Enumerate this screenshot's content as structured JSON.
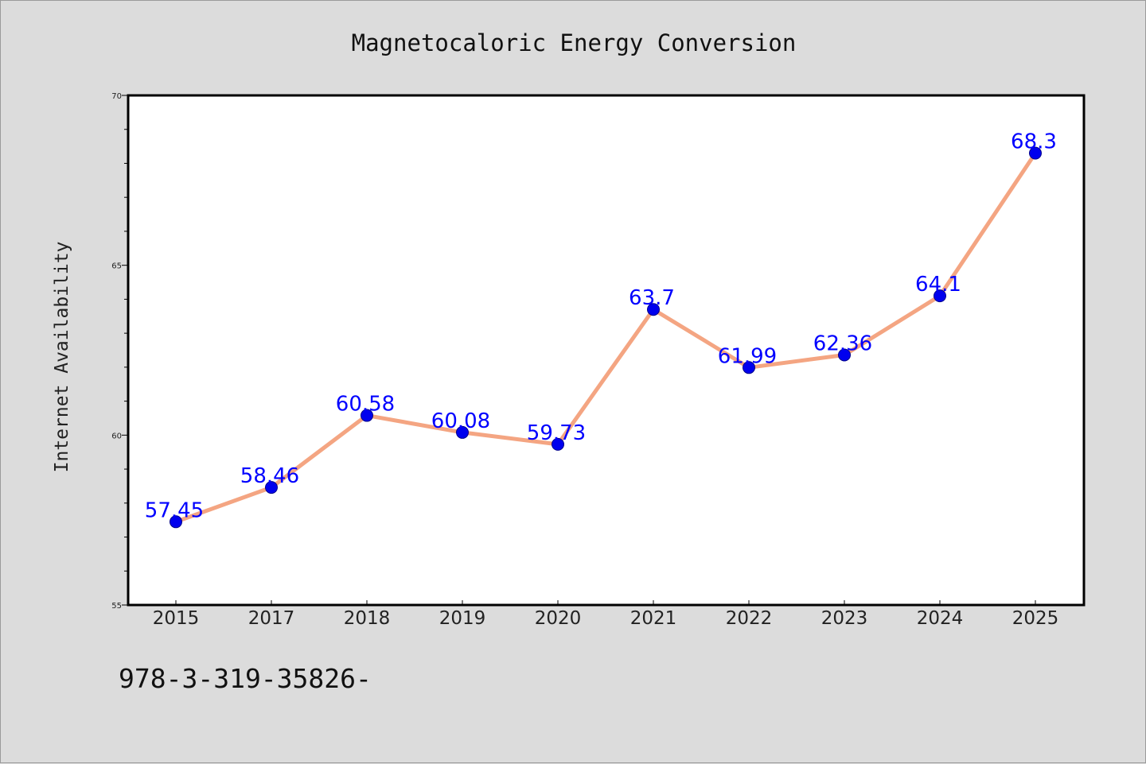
{
  "chart_data": {
    "type": "line",
    "title": "Magnetocaloric Energy Conversion",
    "xlabel": "",
    "ylabel": "Internet Availability",
    "categories": [
      "2015",
      "2017",
      "2018",
      "2019",
      "2020",
      "2021",
      "2022",
      "2023",
      "2024",
      "2025"
    ],
    "series": [
      {
        "values": [
          57.45,
          58.46,
          60.58,
          60.08,
          59.73,
          63.7,
          61.99,
          62.36,
          64.1,
          68.3
        ],
        "data_labels": [
          "57.45",
          "58.46",
          "60.58",
          "60.08",
          "59.73",
          "63.7",
          "61.99",
          "62.36",
          "64.1",
          "68.3"
        ],
        "line_color": "#f4a582",
        "marker_color": "#0000ee",
        "label_color": "#0000ff"
      }
    ],
    "ylim": [
      55,
      70
    ],
    "yticks": [
      "55",
      "60",
      "65",
      "70"
    ],
    "grid": false,
    "legend": "none"
  },
  "footer": {
    "text": "978-3-319-35826-"
  },
  "colors": {
    "background": "#dcdcdc",
    "plot_background": "#ffffff",
    "axis": "#000000"
  }
}
